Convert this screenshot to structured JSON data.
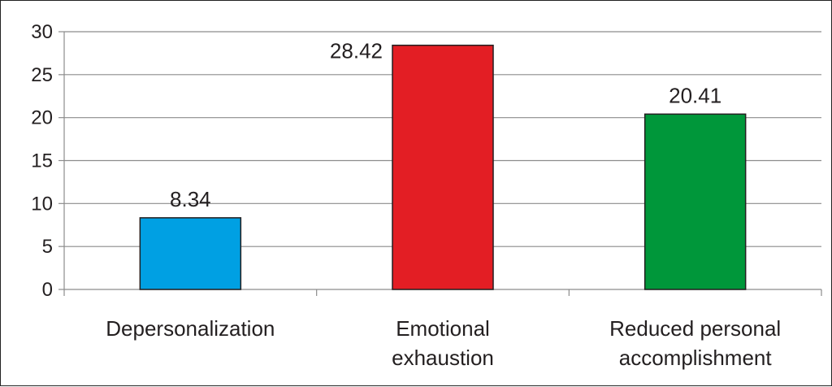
{
  "chart_data": {
    "type": "bar",
    "title": "",
    "xlabel": "",
    "ylabel": "",
    "categories": [
      [
        "Depersonalization"
      ],
      [
        "Emotional",
        "exhaustion"
      ],
      [
        "Reduced personal",
        "accomplishment"
      ]
    ],
    "values": [
      8.34,
      28.42,
      20.41
    ],
    "value_labels": [
      "8.34",
      "28.42",
      "20.41"
    ],
    "colors": [
      "#00a0e3",
      "#e31e24",
      "#00973a"
    ],
    "ylim": [
      0,
      30
    ],
    "yticks": [
      0,
      5,
      10,
      15,
      20,
      25,
      30
    ],
    "grid": true,
    "legend": "none"
  }
}
